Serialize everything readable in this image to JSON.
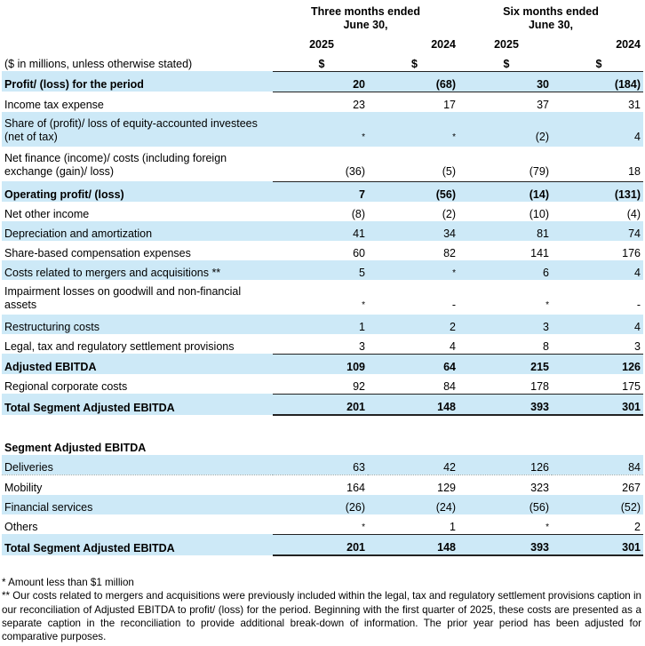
{
  "header": {
    "group1": [
      "Three months ended",
      "June 30,"
    ],
    "group2": [
      "Six months ended",
      "June 30,"
    ],
    "years": [
      "2025",
      "2024",
      "2025",
      "2024"
    ],
    "units_label": "($ in millions, unless otherwise stated)",
    "currency": [
      "$",
      "$",
      "$",
      "$"
    ]
  },
  "rows": [
    {
      "label": "Profit/ (loss) for the period",
      "values": [
        "20",
        "(68)",
        "30",
        "(184)"
      ]
    },
    {
      "label": "Income tax expense",
      "values": [
        "23",
        "17",
        "37",
        "31"
      ]
    },
    {
      "label": "Share of (profit)/ loss of equity-accounted investees (net of tax)",
      "values": [
        "*",
        "*",
        "(2)",
        "4"
      ]
    },
    {
      "label": "Net finance (income)/ costs (including foreign exchange (gain)/ loss)",
      "values": [
        "(36)",
        "(5)",
        "(79)",
        "18"
      ]
    },
    {
      "label": "Operating profit/ (loss)",
      "values": [
        "7",
        "(56)",
        "(14)",
        "(131)"
      ]
    },
    {
      "label": "Net other income",
      "values": [
        "(8)",
        "(2)",
        "(10)",
        "(4)"
      ]
    },
    {
      "label": "Depreciation and amortization",
      "values": [
        "41",
        "34",
        "81",
        "74"
      ]
    },
    {
      "label": "Share-based compensation expenses",
      "values": [
        "60",
        "82",
        "141",
        "176"
      ]
    },
    {
      "label": "Costs related to mergers and acquisitions **",
      "values": [
        "5",
        "*",
        "6",
        "4"
      ]
    },
    {
      "label": "Impairment losses on goodwill and non-financial assets",
      "values": [
        "*",
        "-",
        "*",
        "-"
      ]
    },
    {
      "label": "Restructuring costs",
      "values": [
        "1",
        "2",
        "3",
        "4"
      ]
    },
    {
      "label": "Legal, tax and regulatory settlement provisions",
      "values": [
        "3",
        "4",
        "8",
        "3"
      ]
    },
    {
      "label": "Adjusted EBITDA",
      "values": [
        "109",
        "64",
        "215",
        "126"
      ]
    },
    {
      "label": "Regional corporate costs",
      "values": [
        "92",
        "84",
        "178",
        "175"
      ]
    },
    {
      "label": "Total Segment Adjusted EBITDA",
      "values": [
        "201",
        "148",
        "393",
        "301"
      ]
    }
  ],
  "segment": {
    "title": "Segment Adjusted EBITDA",
    "rows": [
      {
        "label": "Deliveries",
        "values": [
          "63",
          "42",
          "126",
          "84"
        ]
      },
      {
        "label": "Mobility",
        "values": [
          "164",
          "129",
          "323",
          "267"
        ]
      },
      {
        "label": "Financial services",
        "values": [
          "(26)",
          "(24)",
          "(56)",
          "(52)"
        ]
      },
      {
        "label": "Others",
        "values": [
          "*",
          "1",
          "*",
          "2"
        ]
      },
      {
        "label": "Total Segment Adjusted EBITDA",
        "values": [
          "201",
          "148",
          "393",
          "301"
        ]
      }
    ]
  },
  "footnotes": {
    "note1": "* Amount less than $1 million",
    "note2": "** Our costs related to mergers and acquisitions were previously included within the legal, tax and regulatory settlement provisions caption in our reconciliation of Adjusted EBITDA to profit/ (loss) for the period. Beginning with the first quarter of 2025, these costs are presented as a separate caption in the reconciliation to provide additional break-down of information. The prior year period has been adjusted for comparative purposes."
  }
}
